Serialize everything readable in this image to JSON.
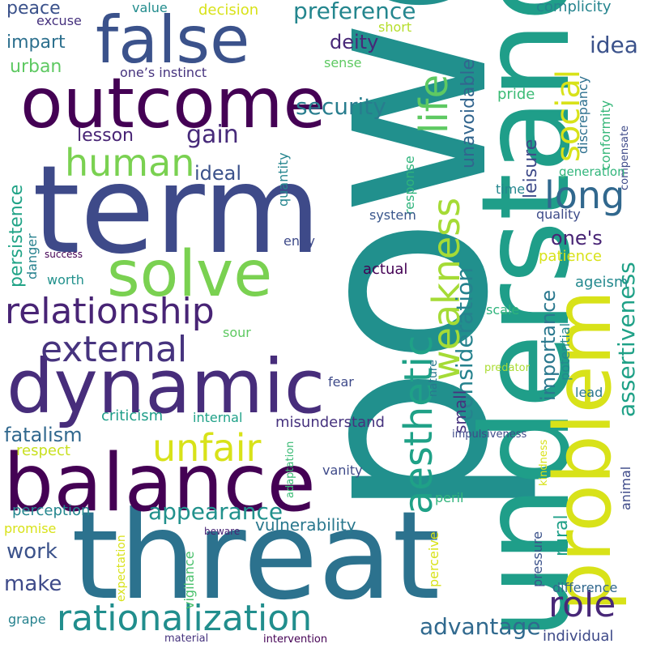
{
  "palette": {
    "dark_purple": "#440154",
    "purple": "#472c7a",
    "indigo": "#3b518b",
    "blue": "#2c718e",
    "teal": "#21908d",
    "green_teal": "#27ad81",
    "green": "#5cc863",
    "lime": "#aadc32",
    "yellow": "#d8e219"
  },
  "words": [
    "power",
    "understand",
    "threat",
    "term",
    "balance",
    "dynamic",
    "problem",
    "outcome",
    "false",
    "solve",
    "relationship",
    "rationalization",
    "external",
    "aesthetic",
    "weakness",
    "unfair",
    "human",
    "life",
    "social",
    "long",
    "role",
    "appearance",
    "advantage",
    "preference",
    "security",
    "consideration",
    "assertiveness",
    "importance",
    "fatalism",
    "peace",
    "excuse",
    "value",
    "decision",
    "complicity",
    "impart",
    "urban",
    "one’s instinct",
    "short",
    "sense",
    "idea",
    "deity",
    "unavoidable",
    "discrepancy",
    "conformity",
    "compensate",
    "pride",
    "lesson",
    "gain",
    "leisure",
    "ideal",
    "persistence",
    "quantity",
    "response",
    "time",
    "generation",
    "quality",
    "system",
    "one's",
    "patience",
    "danger",
    "success",
    "envy",
    "worth",
    "actual",
    "ageism",
    "scale",
    "rural",
    "small",
    "sour",
    "potential",
    "lead",
    "fear",
    "nature",
    "predator",
    "internal",
    "criticism",
    "misunderstand",
    "impulsiveness",
    "respect",
    "kindness",
    "adaptation",
    "vanity",
    "perception",
    "promise",
    "peril",
    "animal",
    "vulnerability",
    "beware",
    "vigilance",
    "expectation",
    "perceive",
    "work",
    "pressure",
    "make",
    "difference",
    "grape",
    "individual",
    "material",
    "intervention"
  ]
}
